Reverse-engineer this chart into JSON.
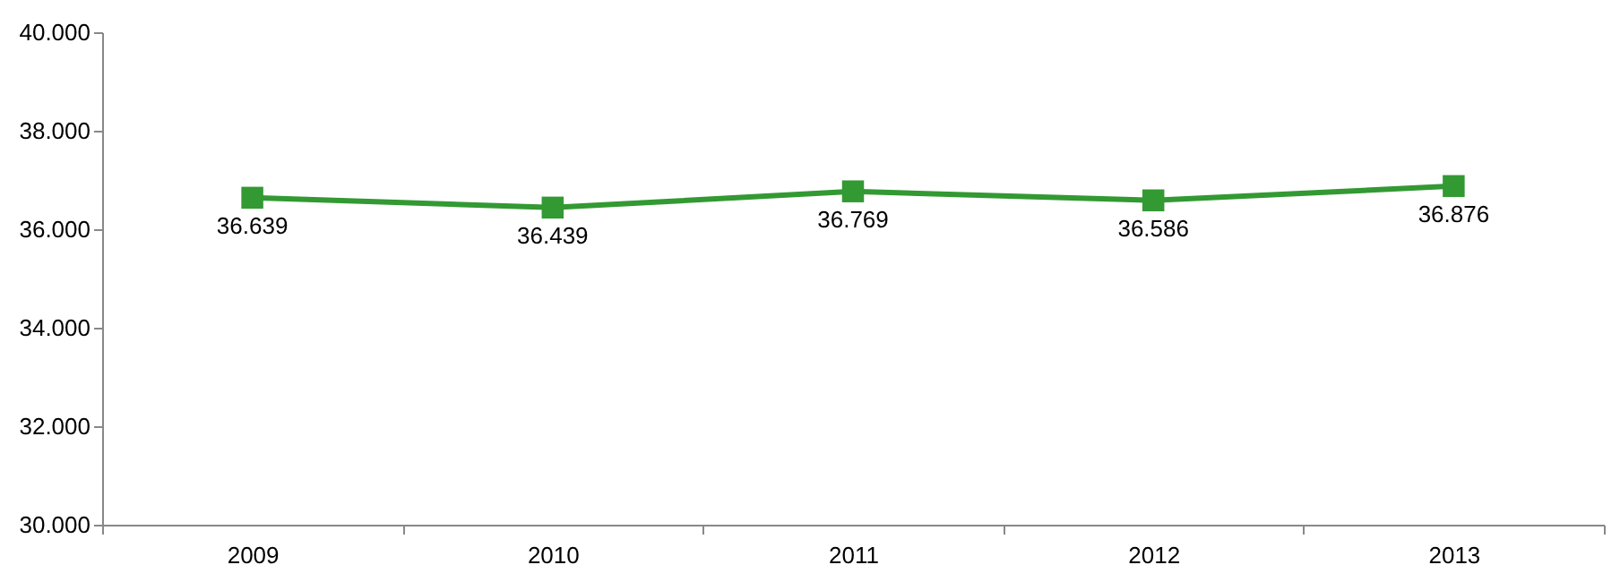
{
  "chart_data": {
    "type": "line",
    "categories": [
      "2009",
      "2010",
      "2011",
      "2012",
      "2013"
    ],
    "series": [
      {
        "color": "#339933",
        "values": [
          36639,
          36439,
          36769,
          36586,
          36876
        ],
        "value_labels": [
          "36.639",
          "36.439",
          "36.769",
          "36.586",
          "36.876"
        ]
      }
    ],
    "ylim": [
      30000,
      40000
    ],
    "yticks": [
      {
        "value": 30000,
        "label": "30.000"
      },
      {
        "value": 32000,
        "label": "32.000"
      },
      {
        "value": 34000,
        "label": "34.000"
      },
      {
        "value": 36000,
        "label": "36.000"
      },
      {
        "value": 38000,
        "label": "38.000"
      },
      {
        "value": 40000,
        "label": "40.000"
      }
    ],
    "marker": "square",
    "line_style": "solid",
    "grid": false
  }
}
